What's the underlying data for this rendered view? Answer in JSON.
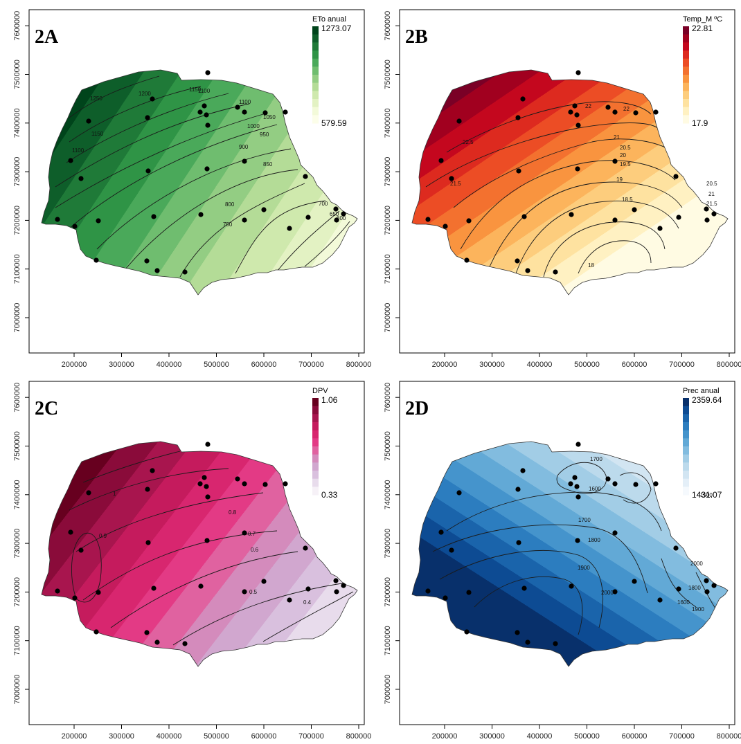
{
  "figure": {
    "panels": [
      {
        "id": "2A",
        "label": "2A",
        "legend_title": "ETo anual",
        "legend_max": "1273.07",
        "legend_min": "579.59",
        "colors": [
          "#00441b",
          "#0e5e2a",
          "#1f7a38",
          "#2f9446",
          "#4aa95a",
          "#6fbd6f",
          "#93cd83",
          "#b4dc97",
          "#cfe9ad",
          "#e3f2c3",
          "#f3fad9",
          "#fcfee9"
        ],
        "contour_labels": [
          "1250",
          "1200",
          "1150",
          "1100",
          "1100",
          "1150",
          "1100",
          "1050",
          "1000",
          "950",
          "900",
          "850",
          "800",
          "750",
          "700",
          "650",
          "600"
        ]
      },
      {
        "id": "2B",
        "label": "2B",
        "legend_title": "Temp_M ºC",
        "legend_max": "22.81",
        "legend_min": "17.9",
        "colors": [
          "#7a0026",
          "#a1001f",
          "#c4071e",
          "#dd2a1f",
          "#ec4d25",
          "#f3712f",
          "#f9943f",
          "#fcb45c",
          "#fdcd7d",
          "#fee2a0",
          "#fff1c2",
          "#fffbe3"
        ],
        "contour_labels": [
          "22.5",
          "22",
          "22",
          "21.5",
          "21",
          "20.5",
          "20",
          "19.5",
          "19",
          "18.5",
          "18",
          "20.5",
          "21",
          "21.5"
        ]
      },
      {
        "id": "2C",
        "label": "2C",
        "legend_title": "DPV",
        "legend_max": "1.06",
        "legend_min": "0.33",
        "colors": [
          "#67001f",
          "#8a0b3a",
          "#a8154e",
          "#c51b5d",
          "#d8266f",
          "#e33a85",
          "#e062a0",
          "#d48bbc",
          "#d1a7cf",
          "#d9c0de",
          "#e8dcec",
          "#f6f1f7"
        ],
        "contour_labels": [
          "1",
          "0.9",
          "0.8",
          "0.7",
          "0.6",
          "0.5",
          "0.4"
        ]
      },
      {
        "id": "2D",
        "label": "2D",
        "legend_title": "Prec anual",
        "legend_max": "2359.64",
        "legend_min": "1431.07",
        "colors": [
          "#08306b",
          "#0d4b93",
          "#1a64ab",
          "#2c7dbf",
          "#4594cc",
          "#62a9d6",
          "#82bcdf",
          "#a2cde6",
          "#bcdaec",
          "#d2e5f2",
          "#e4eff8",
          "#f5f9fd"
        ],
        "contour_labels": [
          "1700",
          "1600",
          "1500",
          "1700",
          "1800",
          "1900",
          "2000",
          "1600",
          "1800",
          "1900",
          "2000"
        ]
      }
    ],
    "x_ticks": [
      "200000",
      "300000",
      "400000",
      "500000",
      "600000",
      "700000",
      "800000"
    ],
    "y_ticks": [
      "7000000",
      "7100000",
      "7200000",
      "7300000",
      "7400000",
      "7500000",
      "7600000"
    ]
  }
}
